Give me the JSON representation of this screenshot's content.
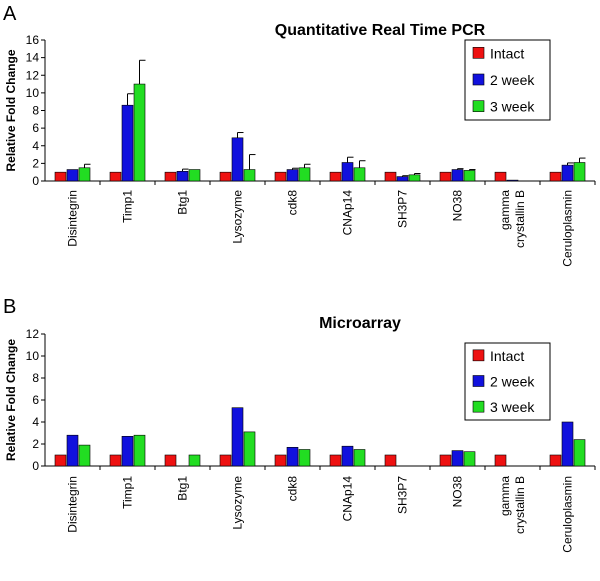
{
  "chart_data": [
    {
      "panel": "A",
      "type": "bar",
      "title": "Quantitative Real Time PCR",
      "xlabel": "",
      "ylabel": "Relative Fold Change",
      "ylim": [
        0,
        16
      ],
      "yticks": [
        0,
        2,
        4,
        6,
        8,
        10,
        12,
        14,
        16
      ],
      "categories": [
        "Disintegrin",
        "Timp1",
        "Btg1",
        "Lysozyme",
        "cdk8",
        "CNAp14",
        "SH3P7",
        "NO38",
        "gamma|crystallin B",
        "Ceruloplasmin"
      ],
      "legend_position": "top-right",
      "series": [
        {
          "name": "Intact",
          "color": "#ee1111",
          "values": [
            1,
            1,
            1,
            1,
            1,
            1,
            1,
            1,
            1,
            1
          ],
          "errors": [
            0,
            0,
            0,
            0,
            0,
            0,
            0,
            0,
            0,
            0
          ]
        },
        {
          "name": "2 week",
          "color": "#1111dd",
          "values": [
            1.3,
            8.6,
            1.1,
            4.9,
            1.3,
            2.1,
            0.5,
            1.3,
            0.1,
            1.8
          ],
          "errors": [
            0,
            1.3,
            0.25,
            0.6,
            0.15,
            0.6,
            0.1,
            0.1,
            0,
            0.25
          ]
        },
        {
          "name": "3 week",
          "color": "#22dd22",
          "values": [
            1.5,
            11.0,
            1.3,
            1.3,
            1.5,
            1.5,
            0.7,
            1.2,
            0,
            2.1
          ],
          "errors": [
            0.4,
            2.7,
            0,
            1.7,
            0.4,
            0.8,
            0.15,
            0.1,
            0,
            0.5
          ]
        }
      ]
    },
    {
      "panel": "B",
      "type": "bar",
      "title": "Microarray",
      "xlabel": "",
      "ylabel": "Relative Fold Change",
      "ylim": [
        0,
        12
      ],
      "yticks": [
        0,
        2,
        4,
        6,
        8,
        10,
        12
      ],
      "categories": [
        "Disintegrin",
        "Timp1",
        "Btg1",
        "Lysozyme",
        "cdk8",
        "CNAp14",
        "SH3P7",
        "NO38",
        "gamma|crystallin B",
        "Ceruloplasmin"
      ],
      "legend_position": "right",
      "series": [
        {
          "name": "Intact",
          "color": "#ee1111",
          "values": [
            1,
            1,
            1,
            1,
            1,
            1,
            1,
            1,
            1,
            1
          ]
        },
        {
          "name": "2 week",
          "color": "#1111dd",
          "values": [
            2.8,
            2.7,
            0,
            5.3,
            1.7,
            1.8,
            0,
            1.4,
            0,
            4.0
          ]
        },
        {
          "name": "3 week",
          "color": "#22dd22",
          "values": [
            1.9,
            2.8,
            1.0,
            3.1,
            1.5,
            1.5,
            0,
            1.3,
            0,
            2.4
          ]
        }
      ]
    }
  ]
}
